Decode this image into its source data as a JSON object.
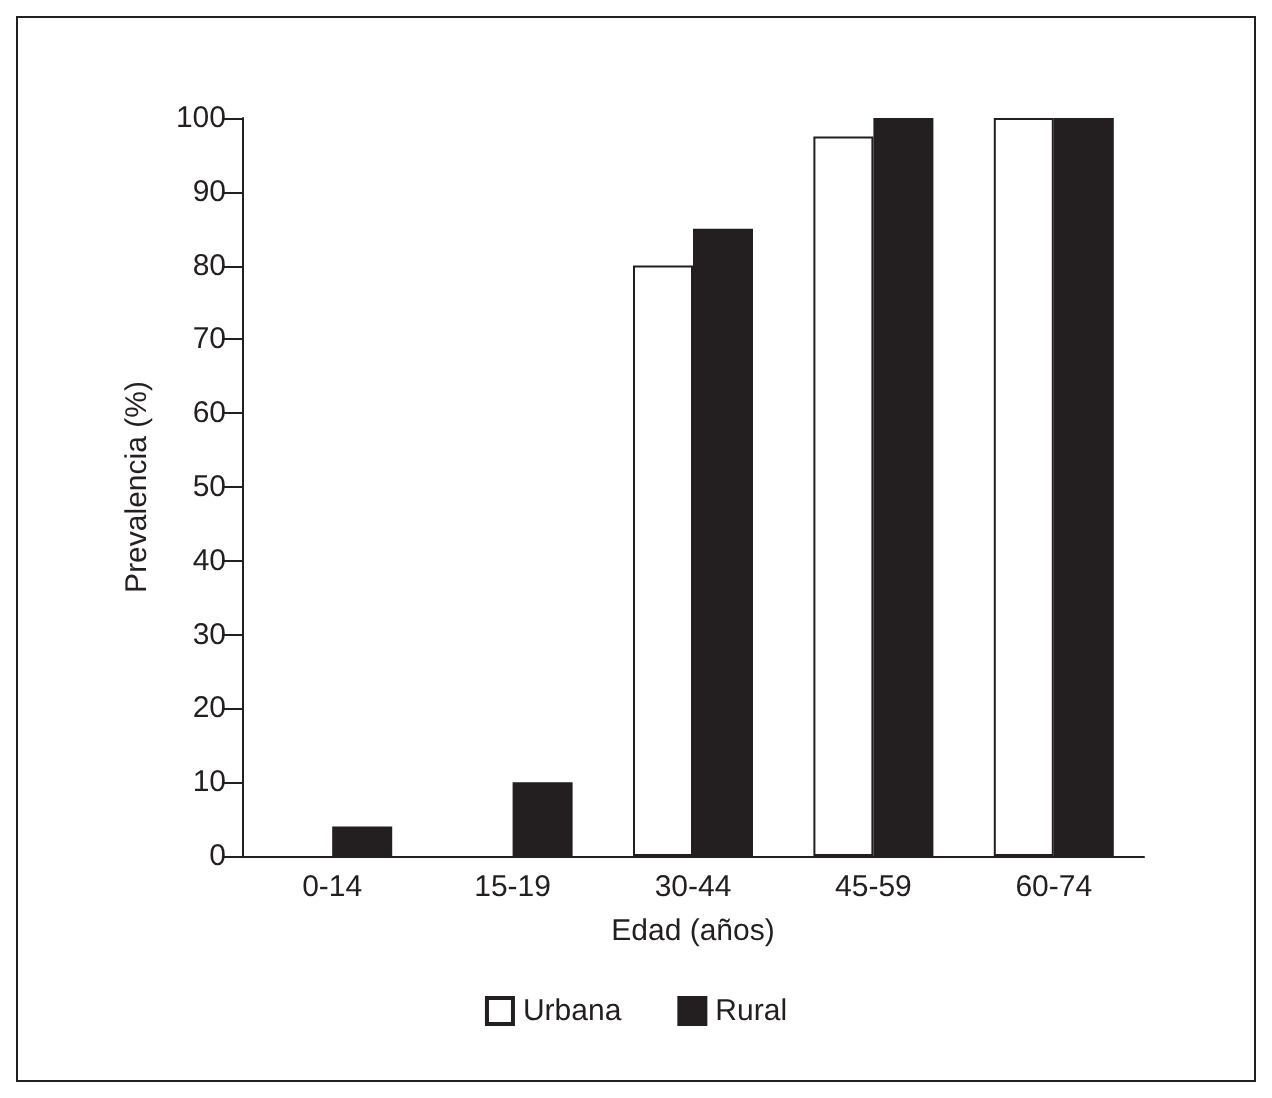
{
  "chart_data": {
    "type": "bar",
    "xlabel": "Edad (años)",
    "ylabel": "Prevalencia (%)",
    "categories": [
      "0-14",
      "15-19",
      "30-44",
      "45-59",
      "60-74"
    ],
    "series": [
      {
        "name": "Urbana",
        "color": "#ffffff",
        "values": [
          0,
          0,
          80,
          97.5,
          100
        ]
      },
      {
        "name": "Rural",
        "color": "#231f20",
        "values": [
          4,
          10,
          85,
          100,
          100
        ]
      }
    ],
    "ylim": [
      0,
      100
    ],
    "yticks": [
      0,
      10,
      20,
      30,
      40,
      50,
      60,
      70,
      80,
      90,
      100
    ],
    "grid": false,
    "legend": "bottom"
  }
}
